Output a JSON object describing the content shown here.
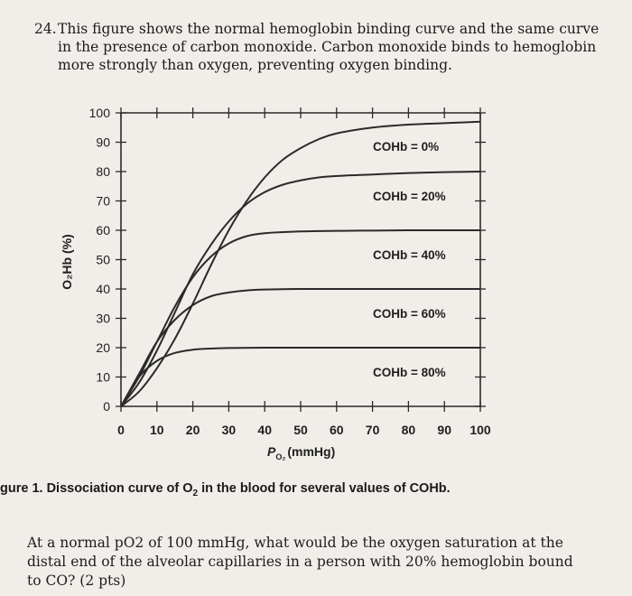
{
  "question_top": {
    "number": "24.",
    "line1": "This figure shows the normal hemoglobin binding curve and the same curve",
    "line2": "in the presence of carbon monoxide. Carbon monoxide binds to hemoglobin",
    "line3": "more strongly than oxygen, preventing oxygen binding."
  },
  "chart_data": {
    "type": "line",
    "ylabel": "O₂Hb (%)",
    "xlabel": "Pₒ₂ (mmHg)",
    "xlabel_main": "P",
    "xlabel_sub": "O₂",
    "xlabel_unit": "(mmHg)",
    "xlim": [
      0,
      100
    ],
    "ylim": [
      0,
      100
    ],
    "xticks": [
      "0",
      "10",
      "20",
      "30",
      "40",
      "50",
      "60",
      "70",
      "80",
      "90",
      "100"
    ],
    "yticks": [
      "0",
      "10",
      "20",
      "30",
      "40",
      "50",
      "60",
      "70",
      "80",
      "90",
      "100"
    ],
    "series": [
      {
        "name": "COHb = 0%",
        "x": [
          0,
          5,
          10,
          15,
          20,
          25,
          30,
          35,
          40,
          45,
          50,
          55,
          60,
          70,
          80,
          90,
          100
        ],
        "y": [
          0,
          5,
          13,
          23,
          35,
          48,
          60,
          70,
          78,
          84,
          88,
          91,
          93,
          95,
          96,
          96.5,
          97
        ]
      },
      {
        "name": "COHb = 20%",
        "x": [
          0,
          5,
          10,
          15,
          20,
          25,
          30,
          35,
          40,
          45,
          50,
          55,
          60,
          70,
          80,
          90,
          100
        ],
        "y": [
          0,
          8,
          19,
          32,
          45,
          55,
          63,
          69,
          73,
          75.5,
          77,
          78,
          78.5,
          79,
          79.5,
          79.8,
          80
        ]
      },
      {
        "name": "COHb = 40%",
        "x": [
          0,
          5,
          10,
          15,
          20,
          25,
          30,
          35,
          40,
          50,
          60,
          70,
          80,
          90,
          100
        ],
        "y": [
          0,
          10,
          22,
          34,
          44,
          51,
          55.5,
          58,
          59,
          59.6,
          59.8,
          59.9,
          60,
          60,
          60
        ]
      },
      {
        "name": "COHb = 60%",
        "x": [
          0,
          5,
          10,
          15,
          20,
          25,
          30,
          35,
          40,
          50,
          60,
          70,
          80,
          90,
          100
        ],
        "y": [
          0,
          11,
          22,
          29.5,
          34.5,
          37.5,
          38.8,
          39.5,
          39.8,
          40,
          40,
          40,
          40,
          40,
          40
        ]
      },
      {
        "name": "COHb = 80%",
        "x": [
          0,
          5,
          10,
          15,
          20,
          25,
          30,
          40,
          50,
          60,
          70,
          80,
          90,
          100
        ],
        "y": [
          0,
          10,
          15.5,
          18.2,
          19.3,
          19.7,
          19.9,
          20,
          20,
          20,
          20,
          20,
          20,
          20
        ]
      }
    ],
    "grid": false,
    "legend": "inline labels to the right of each curve"
  },
  "caption": {
    "prefix": "gure 1. Dissociation curve of O",
    "sub": "2",
    "suffix": " in the blood for several values of COHb."
  },
  "question_bottom": {
    "line1": "At a normal pO2 of 100 mmHg, what would be the oxygen saturation at the",
    "line2": "distal end of the alveolar capillaries in a person with 20% hemoglobin bound",
    "line3": "to CO? (2 pts)"
  },
  "colors": {
    "background": "#f1eeea",
    "curve": "#2a2a2a",
    "text": "#1d1d1f"
  }
}
